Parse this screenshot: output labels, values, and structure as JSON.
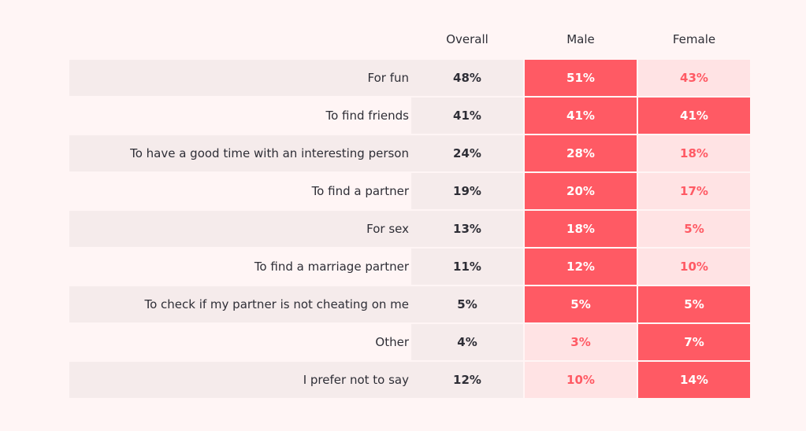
{
  "chart_data": {
    "type": "table",
    "columns": [
      "Overall",
      "Male",
      "Female"
    ],
    "rows": [
      {
        "label": "For fun",
        "overall": "48%",
        "male": "51%",
        "female": "43%",
        "male_tone": "strong",
        "female_tone": "light"
      },
      {
        "label": "To find friends",
        "overall": "41%",
        "male": "41%",
        "female": "41%",
        "male_tone": "strong",
        "female_tone": "strong"
      },
      {
        "label": "To have a good time with an interesting person",
        "overall": "24%",
        "male": "28%",
        "female": "18%",
        "male_tone": "strong",
        "female_tone": "light"
      },
      {
        "label": "To find a partner",
        "overall": "19%",
        "male": "20%",
        "female": "17%",
        "male_tone": "strong",
        "female_tone": "light"
      },
      {
        "label": "For sex",
        "overall": "13%",
        "male": "18%",
        "female": "5%",
        "male_tone": "strong",
        "female_tone": "light"
      },
      {
        "label": "To find a marriage partner",
        "overall": "11%",
        "male": "12%",
        "female": "10%",
        "male_tone": "strong",
        "female_tone": "light"
      },
      {
        "label": "To check if my partner is not cheating on me",
        "overall": "5%",
        "male": "5%",
        "female": "5%",
        "male_tone": "strong",
        "female_tone": "strong"
      },
      {
        "label": "Other",
        "overall": "4%",
        "male": "3%",
        "female": "7%",
        "male_tone": "light",
        "female_tone": "strong"
      },
      {
        "label": "I prefer not to say",
        "overall": "12%",
        "male": "10%",
        "female": "14%",
        "male_tone": "light",
        "female_tone": "strong"
      }
    ],
    "colors": {
      "strong": "#ff5a64",
      "light": "#ffe3e4",
      "neutral": "#f5ebeb",
      "background": "#fff5f5"
    }
  }
}
